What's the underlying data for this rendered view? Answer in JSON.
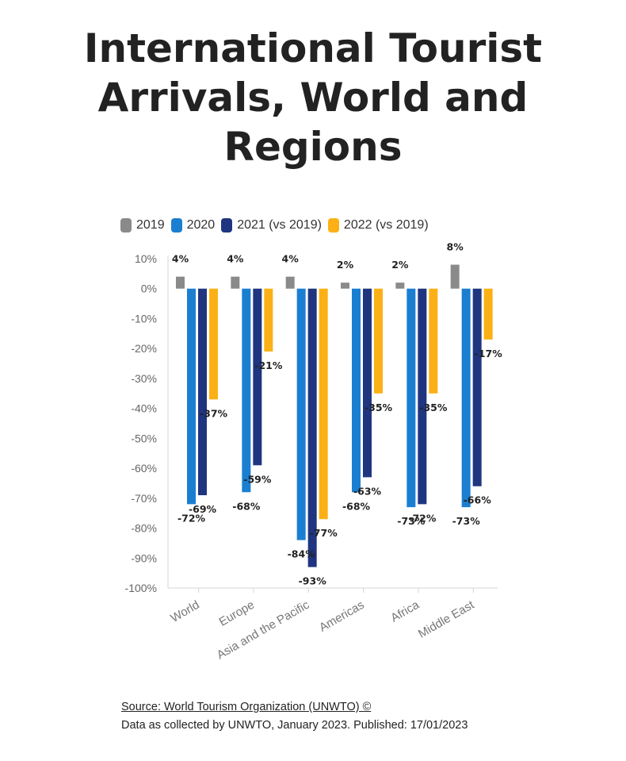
{
  "title_lines": [
    "International Tourist",
    "Arrivals, World and",
    "Regions"
  ],
  "legend": [
    {
      "label": "2019",
      "color": "#8a8a8a"
    },
    {
      "label": "2020",
      "color": "#1a7fd1"
    },
    {
      "label": "2021 (vs 2019)",
      "color": "#1f3580"
    },
    {
      "label": "2022 (vs 2019)",
      "color": "#fbb116"
    }
  ],
  "chart_data": {
    "type": "bar",
    "categories": [
      "World",
      "Europe",
      "Asia and the Pacific",
      "Americas",
      "Africa",
      "Middle East"
    ],
    "series": [
      {
        "name": "2019",
        "color": "#8a8a8a",
        "values": [
          4,
          4,
          4,
          2,
          2,
          8
        ]
      },
      {
        "name": "2020",
        "color": "#1a7fd1",
        "values": [
          -72,
          -68,
          -84,
          -68,
          -73,
          -73
        ]
      },
      {
        "name": "2021 (vs 2019)",
        "color": "#1f3580",
        "values": [
          -69,
          -59,
          -93,
          -63,
          -72,
          -66
        ]
      },
      {
        "name": "2022 (vs 2019)",
        "color": "#fbb116",
        "values": [
          -37,
          -21,
          -77,
          -35,
          -35,
          -17
        ]
      }
    ],
    "data_labels": [
      [
        "4%",
        "4%",
        "4%",
        "2%",
        "2%",
        "8%"
      ],
      [
        "-72%",
        "-68%",
        "-84%",
        "-68%",
        "-73%",
        "-73%"
      ],
      [
        "-69%",
        "-59%",
        "-93%",
        "-63%",
        "-72%",
        "-66%"
      ],
      [
        "-37%",
        "-21%",
        "-77%",
        "-35%",
        "-35%",
        "-17%"
      ]
    ],
    "y_ticks": [
      "10%",
      "0%",
      "-10%",
      "-20%",
      "-30%",
      "-40%",
      "-50%",
      "-60%",
      "-70%",
      "-80%",
      "-90%",
      "-100%"
    ],
    "ylim": [
      -100,
      10
    ],
    "unit": "%",
    "grid": false,
    "legend_position": "top-left"
  },
  "footer": {
    "source": "Source: World Tourism Organization (UNWTO) ©",
    "note": "Data as collected by UNWTO, January 2023. Published: 17/01/2023"
  }
}
